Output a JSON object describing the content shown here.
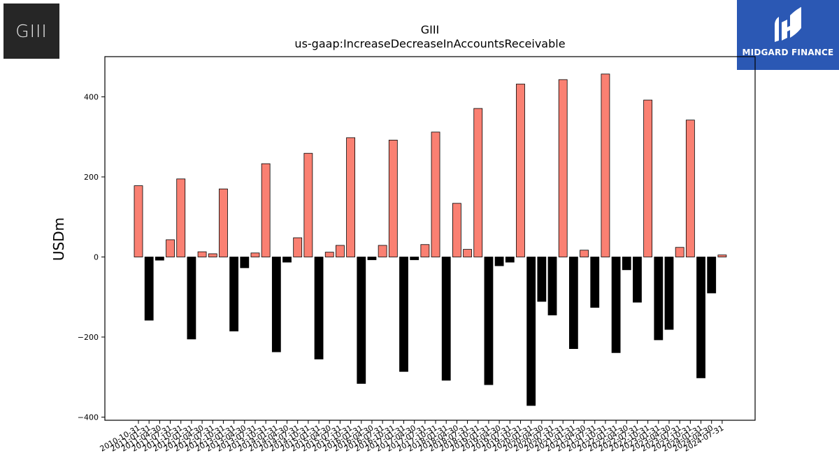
{
  "logos": {
    "left_text": "GIII",
    "right_text": "MIDGARD FINANCE"
  },
  "colors": {
    "positive": "#fa8072",
    "negative": "#000000",
    "right_logo_bg": "#2b58b4",
    "left_logo_bg": "#262626"
  },
  "chart_data": {
    "type": "bar",
    "title": "GIII",
    "subtitle": "us-gaap:IncreaseDecreaseInAccountsReceivable",
    "xlabel": "",
    "ylabel": "USDm",
    "ylim": [
      -410,
      500
    ],
    "yticks": [
      -400,
      -200,
      0,
      200,
      400
    ],
    "grid": false,
    "categories": [
      "2010-10-31",
      "2011-01-31",
      "2011-04-30",
      "2011-07-31",
      "2011-10-31",
      "2012-01-31",
      "2012-04-30",
      "2012-07-31",
      "2012-10-31",
      "2013-01-31",
      "2013-04-30",
      "2013-07-31",
      "2013-10-31",
      "2014-01-31",
      "2014-04-30",
      "2014-07-31",
      "2014-10-31",
      "2015-01-31",
      "2015-04-30",
      "2015-07-31",
      "2015-10-31",
      "2016-01-31",
      "2016-04-30",
      "2016-07-31",
      "2016-10-31",
      "2017-01-31",
      "2017-04-30",
      "2017-07-31",
      "2017-10-31",
      "2018-01-31",
      "2018-04-30",
      "2018-07-31",
      "2018-10-31",
      "2019-01-31",
      "2019-04-30",
      "2019-07-31",
      "2019-10-31",
      "2020-01-31",
      "2020-04-30",
      "2020-07-31",
      "2020-10-31",
      "2021-01-31",
      "2021-04-30",
      "2021-07-31",
      "2021-10-31",
      "2022-01-31",
      "2022-04-30",
      "2022-07-31",
      "2022-10-31",
      "2023-01-31",
      "2023-04-30",
      "2023-07-31",
      "2023-10-31",
      "2024-01-31",
      "2024-04-30",
      "2024-07-31"
    ],
    "values": [
      178,
      -158,
      -8,
      43,
      195,
      -205,
      13,
      8,
      170,
      -185,
      -27,
      10,
      233,
      -237,
      -13,
      48,
      259,
      -255,
      12,
      29,
      298,
      -316,
      -7,
      29,
      292,
      -286,
      -7,
      31,
      312,
      -308,
      134,
      19,
      371,
      -319,
      -22,
      -13,
      432,
      -371,
      -111,
      -145,
      443,
      -229,
      17,
      -126,
      457,
      -239,
      -32,
      -113,
      392,
      -207,
      -181,
      24,
      342,
      -302,
      -90,
      5
    ]
  }
}
